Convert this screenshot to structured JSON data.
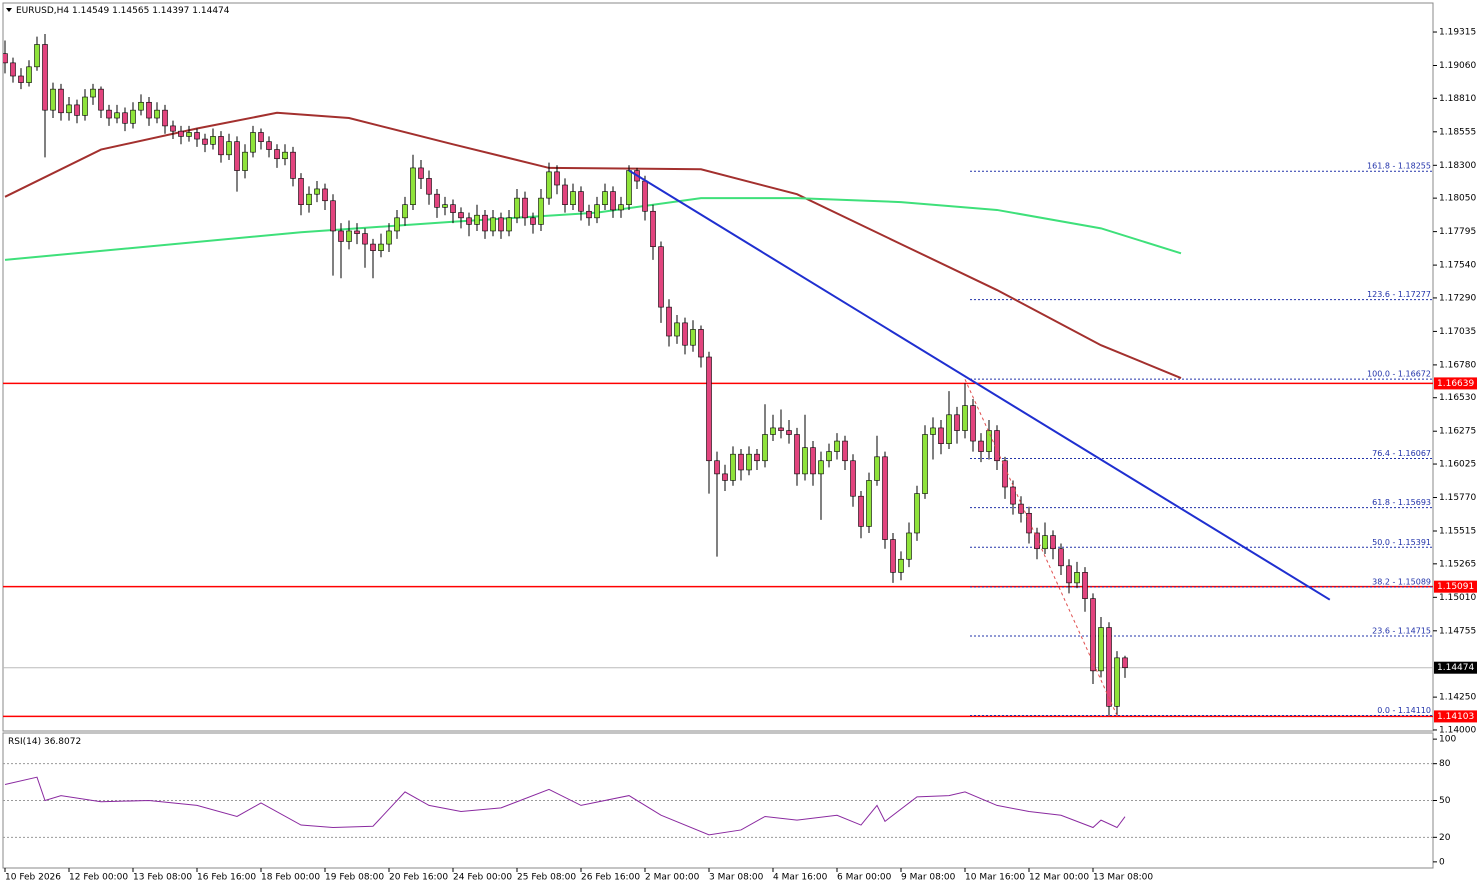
{
  "header": {
    "symbol": "EURUSD,H4",
    "ohlc": [
      1.14549,
      1.14565,
      1.14397,
      1.14474
    ]
  },
  "chart_data": {
    "type": "candlestick",
    "categories": [
      "10 Feb 2026",
      null,
      null,
      null,
      null,
      null,
      null,
      null,
      "12 Feb 00:00",
      null,
      null,
      null,
      null,
      null,
      null,
      null,
      "13 Feb 08:00",
      null,
      null,
      null,
      null,
      null,
      null,
      null,
      "16 Feb 16:00",
      null,
      null,
      null,
      null,
      null,
      null,
      null,
      "18 Feb 00:00",
      null,
      null,
      null,
      null,
      null,
      null,
      null,
      "19 Feb 08:00",
      null,
      null,
      null,
      null,
      null,
      null,
      null,
      "20 Feb 16:00",
      null,
      null,
      null,
      null,
      null,
      null,
      null,
      "24 Feb 00:00",
      null,
      null,
      null,
      null,
      null,
      null,
      null,
      "25 Feb 08:00",
      null,
      null,
      null,
      null,
      null,
      null,
      null,
      "26 Feb 16:00",
      null,
      null,
      null,
      null,
      null,
      null,
      null,
      "2 Mar 00:00",
      null,
      null,
      null,
      null,
      null,
      null,
      null,
      "3 Mar 08:00",
      null,
      null,
      null,
      null,
      null,
      null,
      null,
      "4 Mar 16:00",
      null,
      null,
      null,
      null,
      null,
      null,
      null,
      "6 Mar 00:00",
      null,
      null,
      null,
      null,
      null,
      null,
      null,
      "9 Mar 08:00",
      null,
      null,
      null,
      null,
      null,
      null,
      null,
      "10 Mar 16:00",
      null,
      null,
      null,
      null,
      null,
      null,
      null,
      "12 Mar 00:00",
      null,
      null,
      null,
      null,
      null,
      null,
      null,
      "13 Mar 08:00",
      null,
      null,
      null,
      null
    ],
    "candles": [
      [
        1.1915,
        1.1925,
        1.19,
        1.1908
      ],
      [
        1.1908,
        1.1912,
        1.1893,
        1.1898
      ],
      [
        1.1898,
        1.1904,
        1.1888,
        1.1893
      ],
      [
        1.1893,
        1.191,
        1.189,
        1.1905
      ],
      [
        1.1905,
        1.1928,
        1.1902,
        1.1922
      ],
      [
        1.1922,
        1.193,
        1.1836,
        1.1872
      ],
      [
        1.1872,
        1.1893,
        1.1866,
        1.1888
      ],
      [
        1.1888,
        1.1892,
        1.1864,
        1.187
      ],
      [
        1.187,
        1.1882,
        1.1864,
        1.1876
      ],
      [
        1.1876,
        1.188,
        1.1862,
        1.1868
      ],
      [
        1.1868,
        1.1888,
        1.1864,
        1.1882
      ],
      [
        1.1882,
        1.1892,
        1.1876,
        1.1888
      ],
      [
        1.1888,
        1.189,
        1.1866,
        1.1872
      ],
      [
        1.1872,
        1.1876,
        1.186,
        1.1866
      ],
      [
        1.1866,
        1.1876,
        1.1862,
        1.187
      ],
      [
        1.187,
        1.1874,
        1.1856,
        1.1862
      ],
      [
        1.1862,
        1.1878,
        1.1858,
        1.1872
      ],
      [
        1.1872,
        1.1884,
        1.1868,
        1.1878
      ],
      [
        1.1878,
        1.1882,
        1.186,
        1.1866
      ],
      [
        1.1866,
        1.1878,
        1.1862,
        1.1872
      ],
      [
        1.1872,
        1.1876,
        1.1854,
        1.186
      ],
      [
        1.186,
        1.1864,
        1.185,
        1.1856
      ],
      [
        1.1856,
        1.186,
        1.1846,
        1.1852
      ],
      [
        1.1852,
        1.186,
        1.1848,
        1.1855
      ],
      [
        1.1855,
        1.1858,
        1.1844,
        1.185
      ],
      [
        1.185,
        1.1854,
        1.184,
        1.1846
      ],
      [
        1.1846,
        1.1858,
        1.1842,
        1.1852
      ],
      [
        1.1852,
        1.1856,
        1.1832,
        1.1838
      ],
      [
        1.1838,
        1.1854,
        1.1834,
        1.1848
      ],
      [
        1.1848,
        1.1852,
        1.181,
        1.1826
      ],
      [
        1.1826,
        1.1846,
        1.182,
        1.184
      ],
      [
        1.184,
        1.186,
        1.1836,
        1.1855
      ],
      [
        1.1855,
        1.1858,
        1.1842,
        1.1848
      ],
      [
        1.1848,
        1.1852,
        1.1836,
        1.1842
      ],
      [
        1.1842,
        1.1846,
        1.1828,
        1.1835
      ],
      [
        1.1835,
        1.1846,
        1.183,
        1.184
      ],
      [
        1.184,
        1.1844,
        1.1814,
        1.182
      ],
      [
        1.182,
        1.1824,
        1.1792,
        1.18
      ],
      [
        1.18,
        1.1814,
        1.1794,
        1.1808
      ],
      [
        1.1808,
        1.1818,
        1.1802,
        1.1812
      ],
      [
        1.1812,
        1.1816,
        1.1796,
        1.1803
      ],
      [
        1.1803,
        1.1808,
        1.1746,
        1.178
      ],
      [
        1.178,
        1.1786,
        1.1744,
        1.1772
      ],
      [
        1.1772,
        1.1788,
        1.1766,
        1.178
      ],
      [
        1.178,
        1.1786,
        1.177,
        1.1778
      ],
      [
        1.1778,
        1.1782,
        1.1752,
        1.177
      ],
      [
        1.177,
        1.1774,
        1.1744,
        1.1765
      ],
      [
        1.1765,
        1.1778,
        1.176,
        1.177
      ],
      [
        1.177,
        1.1786,
        1.1764,
        1.178
      ],
      [
        1.178,
        1.1796,
        1.1774,
        1.179
      ],
      [
        1.179,
        1.1806,
        1.1784,
        1.18
      ],
      [
        1.18,
        1.1838,
        1.1796,
        1.1828
      ],
      [
        1.1828,
        1.1834,
        1.1812,
        1.182
      ],
      [
        1.182,
        1.1826,
        1.18,
        1.1808
      ],
      [
        1.1808,
        1.1812,
        1.179,
        1.1798
      ],
      [
        1.1798,
        1.1806,
        1.1792,
        1.18
      ],
      [
        1.18,
        1.1804,
        1.1786,
        1.1794
      ],
      [
        1.1794,
        1.1798,
        1.1782,
        1.179
      ],
      [
        1.179,
        1.1794,
        1.1776,
        1.1785
      ],
      [
        1.1785,
        1.18,
        1.178,
        1.1792
      ],
      [
        1.1792,
        1.1796,
        1.1774,
        1.178
      ],
      [
        1.178,
        1.1796,
        1.1776,
        1.179
      ],
      [
        1.179,
        1.1794,
        1.1774,
        1.178
      ],
      [
        1.178,
        1.1796,
        1.1776,
        1.179
      ],
      [
        1.179,
        1.1812,
        1.1786,
        1.1805
      ],
      [
        1.1805,
        1.181,
        1.1784,
        1.179
      ],
      [
        1.179,
        1.1794,
        1.1778,
        1.1785
      ],
      [
        1.1785,
        1.1812,
        1.178,
        1.1805
      ],
      [
        1.1805,
        1.1832,
        1.18,
        1.1825
      ],
      [
        1.1825,
        1.183,
        1.1808,
        1.1815
      ],
      [
        1.1815,
        1.182,
        1.1794,
        1.18
      ],
      [
        1.18,
        1.1816,
        1.1796,
        1.181
      ],
      [
        1.181,
        1.1814,
        1.1788,
        1.1795
      ],
      [
        1.1795,
        1.18,
        1.1784,
        1.179
      ],
      [
        1.179,
        1.1806,
        1.1786,
        1.18
      ],
      [
        1.18,
        1.1816,
        1.1796,
        1.181
      ],
      [
        1.181,
        1.1814,
        1.179,
        1.1796
      ],
      [
        1.1796,
        1.1806,
        1.179,
        1.18
      ],
      [
        1.18,
        1.183,
        1.1796,
        1.1826
      ],
      [
        1.1826,
        1.1828,
        1.1812,
        1.1818
      ],
      [
        1.1818,
        1.1822,
        1.1788,
        1.1795
      ],
      [
        1.1795,
        1.18,
        1.1758,
        1.1768
      ],
      [
        1.1768,
        1.1772,
        1.171,
        1.1722
      ],
      [
        1.1722,
        1.1728,
        1.1692,
        1.17
      ],
      [
        1.17,
        1.1716,
        1.1694,
        1.171
      ],
      [
        1.171,
        1.1714,
        1.1686,
        1.1693
      ],
      [
        1.1693,
        1.1712,
        1.1688,
        1.1705
      ],
      [
        1.1705,
        1.1708,
        1.1676,
        1.1684
      ],
      [
        1.1684,
        1.1688,
        1.158,
        1.1605
      ],
      [
        1.1605,
        1.1612,
        1.1532,
        1.1595
      ],
      [
        1.1595,
        1.1602,
        1.1582,
        1.159
      ],
      [
        1.159,
        1.1616,
        1.1586,
        1.161
      ],
      [
        1.161,
        1.1614,
        1.159,
        1.1598
      ],
      [
        1.1598,
        1.1616,
        1.1594,
        1.161
      ],
      [
        1.161,
        1.1614,
        1.1598,
        1.1605
      ],
      [
        1.1605,
        1.1648,
        1.16,
        1.1625
      ],
      [
        1.1625,
        1.164,
        1.162,
        1.163
      ],
      [
        1.163,
        1.1644,
        1.1622,
        1.1628
      ],
      [
        1.1628,
        1.1636,
        1.1618,
        1.1625
      ],
      [
        1.1625,
        1.163,
        1.1586,
        1.1595
      ],
      [
        1.1595,
        1.164,
        1.159,
        1.1615
      ],
      [
        1.1615,
        1.162,
        1.1586,
        1.1595
      ],
      [
        1.1595,
        1.1612,
        1.156,
        1.1605
      ],
      [
        1.1605,
        1.1618,
        1.16,
        1.1612
      ],
      [
        1.1612,
        1.1626,
        1.1606,
        1.162
      ],
      [
        1.162,
        1.1624,
        1.1598,
        1.1605
      ],
      [
        1.1605,
        1.161,
        1.157,
        1.1578
      ],
      [
        1.1578,
        1.1582,
        1.1546,
        1.1555
      ],
      [
        1.1555,
        1.1596,
        1.155,
        1.159
      ],
      [
        1.159,
        1.1624,
        1.1586,
        1.1608
      ],
      [
        1.1608,
        1.1612,
        1.1538,
        1.1545
      ],
      [
        1.1545,
        1.155,
        1.1512,
        1.152
      ],
      [
        1.152,
        1.1536,
        1.1514,
        1.153
      ],
      [
        1.153,
        1.1558,
        1.1524,
        1.155
      ],
      [
        1.155,
        1.1586,
        1.1544,
        1.158
      ],
      [
        1.158,
        1.1632,
        1.1576,
        1.1625
      ],
      [
        1.1625,
        1.1638,
        1.1606,
        1.163
      ],
      [
        1.163,
        1.1636,
        1.161,
        1.1618
      ],
      [
        1.1618,
        1.1658,
        1.1614,
        1.164
      ],
      [
        1.164,
        1.1646,
        1.1618,
        1.1628
      ],
      [
        1.1628,
        1.1664,
        1.1622,
        1.1647
      ],
      [
        1.1647,
        1.1652,
        1.1612,
        1.162
      ],
      [
        1.162,
        1.1626,
        1.1604,
        1.1612
      ],
      [
        1.1612,
        1.1636,
        1.1606,
        1.1628
      ],
      [
        1.1628,
        1.1632,
        1.1598,
        1.1605
      ],
      [
        1.1605,
        1.1608,
        1.1576,
        1.1585
      ],
      [
        1.1585,
        1.159,
        1.1564,
        1.1572
      ],
      [
        1.1572,
        1.1578,
        1.1558,
        1.1565
      ],
      [
        1.1565,
        1.157,
        1.1542,
        1.155
      ],
      [
        1.155,
        1.1554,
        1.153,
        1.1538
      ],
      [
        1.1538,
        1.1558,
        1.1534,
        1.1548
      ],
      [
        1.1548,
        1.1552,
        1.153,
        1.1538
      ],
      [
        1.1538,
        1.1542,
        1.1518,
        1.1525
      ],
      [
        1.1525,
        1.153,
        1.1504,
        1.1512
      ],
      [
        1.1512,
        1.1528,
        1.1508,
        1.152
      ],
      [
        1.152,
        1.1524,
        1.149,
        1.15
      ],
      [
        1.15,
        1.1504,
        1.1435,
        1.1445
      ],
      [
        1.1445,
        1.1486,
        1.144,
        1.1478
      ],
      [
        1.1478,
        1.1482,
        1.1411,
        1.1418
      ],
      [
        1.1418,
        1.146,
        1.1411,
        1.14549
      ],
      [
        1.14549,
        1.14565,
        1.14397,
        1.14474
      ]
    ],
    "up_color": "#8fe33a",
    "down_color": "#e2447e",
    "ylim": [
      1.13992,
      1.19536
    ],
    "yticks": [
      1.19315,
      {
        "value": 1.1906,
        "label": "1.19060"
      },
      {
        "value": 1.1881,
        "label": "1.18810"
      },
      1.18555,
      {
        "value": 1.183,
        "label": "1.18300"
      },
      {
        "value": 1.1805,
        "label": "1.18050"
      },
      1.17795,
      {
        "value": 1.1754,
        "label": "1.17540"
      },
      {
        "value": 1.1729,
        "label": "1.17290"
      },
      1.17035,
      {
        "value": 1.1678,
        "label": "1.16780"
      },
      {
        "value": 1.1653,
        "label": "1.16530"
      },
      1.16275,
      1.16025,
      {
        "value": 1.1577,
        "label": "1.15770"
      },
      1.15515,
      1.15265,
      {
        "value": 1.1501,
        "label": "1.15010"
      },
      1.14755,
      {
        "value": 1.1425,
        "label": "1.14250"
      },
      {
        "value": 1.14,
        "label": "1.14000"
      }
    ],
    "moving_averages": [
      {
        "color": "#a3302e",
        "x": [
          0,
          12,
          24,
          34,
          43,
          56,
          68,
          87,
          99,
          112,
          124,
          137,
          147
        ],
        "values": [
          1.1806,
          1.1842,
          1.1858,
          1.187,
          1.1866,
          1.1846,
          1.1828,
          1.1827,
          1.1808,
          1.177,
          1.1735,
          1.1693,
          1.1668
        ]
      },
      {
        "color": "#3ee07a",
        "x": [
          0,
          37,
          56,
          74,
          87,
          99,
          112,
          124,
          137,
          147
        ],
        "values": [
          1.1758,
          1.1779,
          1.1787,
          1.1794,
          1.1805,
          1.1805,
          1.1802,
          1.1796,
          1.1782,
          1.1763
        ]
      }
    ],
    "trend_lines": [
      {
        "color": "#1f2fd0",
        "dashed": false,
        "x": [
          78,
          165.6
        ],
        "values": [
          1.1826,
          1.14992
        ]
      },
      {
        "color": "#e05050",
        "dashed": true,
        "x": [
          120,
          139
        ],
        "values": [
          1.1667,
          1.1411
        ]
      }
    ],
    "levels": [
      {
        "value": 1.16639,
        "color": "#ff0000"
      },
      {
        "value": 1.15091,
        "color": "#ff0000"
      },
      {
        "value": 1.14103,
        "color": "#ff0000"
      }
    ],
    "current_price": 1.14474,
    "fibonacci": [
      {
        "label": "161.8 - 1.18255",
        "value": 1.18255
      },
      {
        "label": "123.6 - 1.17277",
        "value": 1.17277
      },
      {
        "label": "100.0 - 1.16672",
        "value": 1.16672
      },
      {
        "label": "76.4 - 1.16067",
        "value": 1.16067
      },
      {
        "label": "61.8 - 1.15693",
        "value": 1.15693
      },
      {
        "label": "50.0 - 1.15391",
        "value": 1.15391
      },
      {
        "label": "38.2 - 1.15089",
        "value": 1.15089
      },
      {
        "label": "23.6 - 1.14715",
        "value": 1.14715
      },
      {
        "label": "0.0 - 1.14110",
        "value": 1.1411
      }
    ],
    "fib_color": "#2233aa"
  },
  "rsi": {
    "type": "line",
    "label": "RSI(14)",
    "value": 36.8072,
    "color": "#8a2aa0",
    "x": [
      0,
      4,
      5,
      7,
      12,
      18,
      24,
      29,
      32,
      37,
      41,
      46,
      50,
      53,
      57,
      62,
      68,
      72,
      78,
      82,
      88,
      92,
      95,
      99,
      104,
      107,
      109,
      110,
      114,
      118,
      120,
      124,
      128,
      132,
      136,
      137,
      139,
      140
    ],
    "values": [
      63,
      69,
      50,
      54,
      49,
      50,
      46,
      37,
      48,
      30,
      28,
      29,
      57,
      46,
      41,
      44,
      59,
      46,
      54,
      38,
      22,
      26,
      37,
      34,
      38,
      30,
      46,
      33,
      53,
      54,
      57,
      46,
      41,
      38,
      28,
      34,
      28,
      36.8072
    ],
    "ylim": [
      -5,
      105
    ],
    "yticks": [
      100,
      80,
      50,
      20,
      0
    ],
    "levels": [
      80,
      50,
      20
    ]
  }
}
